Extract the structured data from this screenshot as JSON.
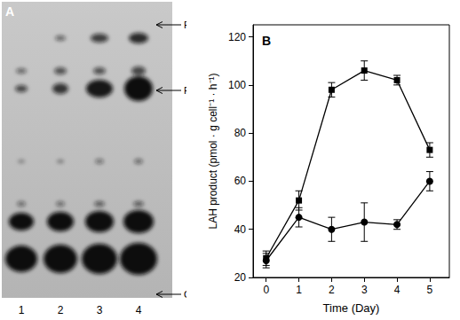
{
  "panel_a": {
    "label": "A",
    "lanes": [
      "1",
      "2",
      "3",
      "4"
    ],
    "band_labels": [
      "PtdBut",
      "PA",
      "Origin"
    ]
  },
  "chart_data": {
    "type": "line",
    "title": "B",
    "x_label": "Time (Day)",
    "y_label": "LAH product (pmol · g cell⁻¹ · h⁻¹)",
    "x": [
      0,
      1,
      2,
      3,
      4,
      5
    ],
    "xlim": [
      -0.4,
      5.6
    ],
    "xticks": [
      0,
      1,
      2,
      3,
      4,
      5
    ],
    "ylim": [
      20,
      125
    ],
    "yticks": [
      20,
      40,
      60,
      80,
      100,
      120
    ],
    "grid": false,
    "series": [
      {
        "color": "#000000",
        "marker": "square",
        "values": [
          28,
          52,
          98,
          106,
          102,
          73
        ],
        "errors": [
          3,
          4,
          3,
          4,
          2,
          3
        ]
      },
      {
        "color": "#000000",
        "marker": "circle",
        "values": [
          27,
          45,
          40,
          43,
          42,
          60
        ],
        "errors": [
          3,
          4,
          5,
          8,
          2,
          4
        ]
      }
    ]
  }
}
